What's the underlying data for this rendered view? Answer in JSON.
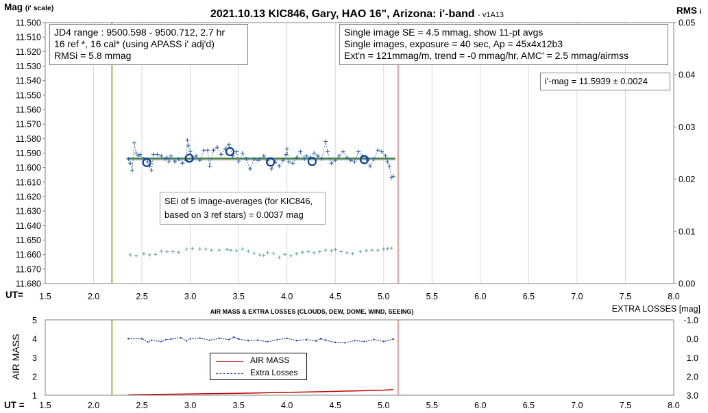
{
  "chart_data": [
    {
      "type": "scatter",
      "title": "2021.10.13 KIC846, Gary, HAO 16\", Arizona: i'-band",
      "title_suffix": "- v1A13",
      "ylabel_left": "Mag",
      "ylabel_left_sub": "(i' scale)",
      "ylabel_right": "RMS",
      "ylabel_right_sub": "i",
      "xlabel": "UT=",
      "xlim": [
        1.5,
        8.0
      ],
      "ylim_left": [
        11.5,
        11.68
      ],
      "ylim_right": [
        0.0,
        0.05
      ],
      "yticks_left": [
        "11.500",
        "11.510",
        "11.520",
        "11.530",
        "11.540",
        "11.550",
        "11.560",
        "11.570",
        "11.580",
        "11.590",
        "11.600",
        "11.610",
        "11.620",
        "11.630",
        "11.640",
        "11.650",
        "11.660",
        "11.670",
        "11.680"
      ],
      "yticks_right": [
        "0.05",
        "0.04",
        "0.03",
        "0.02",
        "0.01",
        "0.00"
      ],
      "xticks": [
        "1.5",
        "2.0",
        "2.5",
        "3.0",
        "3.5",
        "4.0",
        "4.5",
        "5.0",
        "5.5",
        "6.0",
        "6.5",
        "7.0",
        "7.5",
        "8.0"
      ],
      "grid": true,
      "green_vline_x": 2.19,
      "red_vline_x": 5.15,
      "mean_mag": 11.5939,
      "mean_line_x": [
        2.35,
        5.12
      ],
      "series": [
        {
          "name": "single images",
          "x": [
            2.36,
            2.38,
            2.4,
            2.42,
            2.44,
            2.46,
            2.48,
            2.52,
            2.56,
            2.58,
            2.6,
            2.62,
            2.66,
            2.7,
            2.74,
            2.76,
            2.78,
            2.8,
            2.84,
            2.88,
            2.92,
            2.96,
            2.97,
            2.98,
            3.0,
            3.02,
            3.06,
            3.1,
            3.14,
            3.18,
            3.2,
            3.24,
            3.28,
            3.32,
            3.36,
            3.4,
            3.44,
            3.48,
            3.5,
            3.54,
            3.58,
            3.62,
            3.66,
            3.7,
            3.72,
            3.76,
            3.8,
            3.84,
            3.88,
            3.92,
            3.96,
            3.99,
            4.0,
            4.02,
            4.06,
            4.1,
            4.14,
            4.18,
            4.2,
            4.24,
            4.28,
            4.32,
            4.36,
            4.4,
            4.42,
            4.46,
            4.5,
            4.54,
            4.58,
            4.62,
            4.66,
            4.7,
            4.74,
            4.78,
            4.82,
            4.86,
            4.9,
            4.94,
            4.98,
            5.02,
            5.04,
            5.06,
            5.08,
            5.1
          ],
          "y": [
            11.594,
            11.597,
            11.602,
            11.583,
            11.59,
            11.592,
            11.591,
            11.594,
            11.596,
            11.599,
            11.602,
            11.591,
            11.591,
            11.592,
            11.594,
            11.593,
            11.596,
            11.592,
            11.596,
            11.594,
            11.597,
            11.595,
            11.581,
            11.585,
            11.589,
            11.594,
            11.592,
            11.595,
            11.588,
            11.588,
            11.599,
            11.588,
            11.586,
            11.591,
            11.587,
            11.584,
            11.592,
            11.589,
            11.596,
            11.59,
            11.594,
            11.601,
            11.594,
            11.595,
            11.594,
            11.592,
            11.595,
            11.601,
            11.596,
            11.599,
            11.595,
            11.591,
            11.587,
            11.596,
            11.597,
            11.593,
            11.589,
            11.594,
            11.592,
            11.593,
            11.59,
            11.592,
            11.594,
            11.582,
            11.589,
            11.597,
            11.595,
            11.592,
            11.589,
            11.593,
            11.595,
            11.596,
            11.589,
            11.592,
            11.594,
            11.599,
            11.594,
            11.588,
            11.589,
            11.592,
            11.596,
            11.599,
            11.607,
            11.606
          ]
        },
        {
          "name": "11-pt avgs",
          "x": [
            2.55,
            2.99,
            3.41,
            3.83,
            4.26,
            4.8
          ],
          "y": [
            11.5965,
            11.5935,
            11.589,
            11.5962,
            11.5958,
            11.5945
          ]
        },
        {
          "name": "RMSi",
          "x": [
            2.38,
            2.44,
            2.52,
            2.58,
            2.64,
            2.7,
            2.76,
            2.82,
            2.88,
            2.96,
            3.02,
            3.1,
            3.16,
            3.22,
            3.3,
            3.38,
            3.42,
            3.48,
            3.54,
            3.6,
            3.66,
            3.72,
            3.76,
            3.8,
            3.86,
            3.92,
            3.98,
            4.04,
            4.1,
            4.16,
            4.22,
            4.28,
            4.34,
            4.4,
            4.46,
            4.5,
            4.56,
            4.62,
            4.68,
            4.76,
            4.82,
            4.88,
            4.94,
            5.0,
            5.04,
            5.08
          ],
          "y": [
            0.0055,
            0.0053,
            0.0057,
            0.0055,
            0.0056,
            0.0062,
            0.0061,
            0.0061,
            0.006,
            0.0066,
            0.0067,
            0.0066,
            0.0066,
            0.0064,
            0.0064,
            0.0065,
            0.0064,
            0.0063,
            0.0066,
            0.0062,
            0.0058,
            0.0055,
            0.0054,
            0.0059,
            0.0058,
            0.005,
            0.0056,
            0.0053,
            0.0057,
            0.006,
            0.0061,
            0.0059,
            0.0061,
            0.0064,
            0.0063,
            0.0065,
            0.0061,
            0.0059,
            0.0057,
            0.0061,
            0.0063,
            0.0064,
            0.0064,
            0.0066,
            0.0067,
            0.0068
          ]
        }
      ]
    },
    {
      "type": "line",
      "title": "AIR MASS & EXTRA LOSSES (CLOUDS, DEW, DOME, WIND, SEEING)",
      "ylabel_left": "AIR MASS",
      "ylabel_right": "EXTRA LOSSES [mag]",
      "xlabel": "UT =",
      "xlim": [
        1.5,
        8.0
      ],
      "ylim_left": [
        1,
        5
      ],
      "ylim_right": [
        3.0,
        -1.0
      ],
      "yticks_left": [
        "1",
        "2",
        "3",
        "4",
        "5"
      ],
      "yticks_right": [
        "-1.0",
        "0.0",
        "1.0",
        "2.0",
        "3.0"
      ],
      "xticks": [
        "1.5",
        "2.0",
        "2.5",
        "3.0",
        "3.5",
        "4.0",
        "4.5",
        "5.0",
        "5.5",
        "6.0",
        "6.5",
        "7.0",
        "7.5",
        "8.0"
      ],
      "series": [
        {
          "name": "AIR MASS",
          "x": [
            2.36,
            2.6,
            2.9,
            3.2,
            3.5,
            3.8,
            4.1,
            4.4,
            4.7,
            5.0,
            5.1
          ],
          "y": [
            1.02,
            1.04,
            1.06,
            1.08,
            1.1,
            1.13,
            1.16,
            1.19,
            1.23,
            1.27,
            1.3
          ]
        },
        {
          "name": "Extra Losses",
          "x": [
            2.36,
            2.5,
            2.56,
            2.6,
            2.7,
            2.75,
            2.8,
            2.9,
            2.96,
            3.0,
            3.1,
            3.2,
            3.3,
            3.4,
            3.45,
            3.5,
            3.6,
            3.7,
            3.8,
            3.9,
            4.0,
            4.1,
            4.2,
            4.3,
            4.35,
            4.4,
            4.5,
            4.6,
            4.7,
            4.8,
            4.9,
            5.0,
            5.1
          ],
          "y": [
            0.0,
            0.0,
            0.18,
            0.08,
            0.15,
            0.05,
            0.02,
            -0.05,
            0.12,
            0.0,
            -0.03,
            0.08,
            -0.02,
            0.05,
            -0.08,
            0.02,
            0.1,
            0.08,
            0.16,
            0.05,
            -0.02,
            0.1,
            0.05,
            0.12,
            0.0,
            0.08,
            0.2,
            0.22,
            0.1,
            0.15,
            0.05,
            0.15,
            0.02
          ]
        }
      ],
      "legend_placement": "center"
    }
  ],
  "text_boxes": {
    "jd_box": [
      "JD4 range : 9500.598 - 9500.712, 2.7  hr",
      "16 ref *, 16 cal* (using APASS i' adj'd)",
      "RMSi = 5.8 mmag"
    ],
    "se_box": [
      "Single image SE = 4.5 mmag, show 11-pt avgs",
      "Single images, exposure = 40 sec, Ap = 45x4x12b3",
      "Ext'n = 121mmag/m, trend = -0 mmag/hr, AMC' = 2.5 mmag/airmss"
    ],
    "imag_box": "i'-mag = 11.5939 ± 0.0024",
    "sei_box": [
      "SEi of 5 image-averages (for KIC846,",
      "based on 3 ref stars) = 0.0037 mag"
    ]
  },
  "colors": {
    "marker_blue": "#2a5f9e",
    "circle_blue": "#0b3d91",
    "rms_teal": "#5f9ea8",
    "green_line": "#8dc63f",
    "red_line": "#f4a6a6",
    "mean_green": "#3a8a3a",
    "mean_gray": "#b8b8b8",
    "airmass_red": "#c00000",
    "extra_blue": "#1f3fa0",
    "grid": "#d9d9d9"
  }
}
